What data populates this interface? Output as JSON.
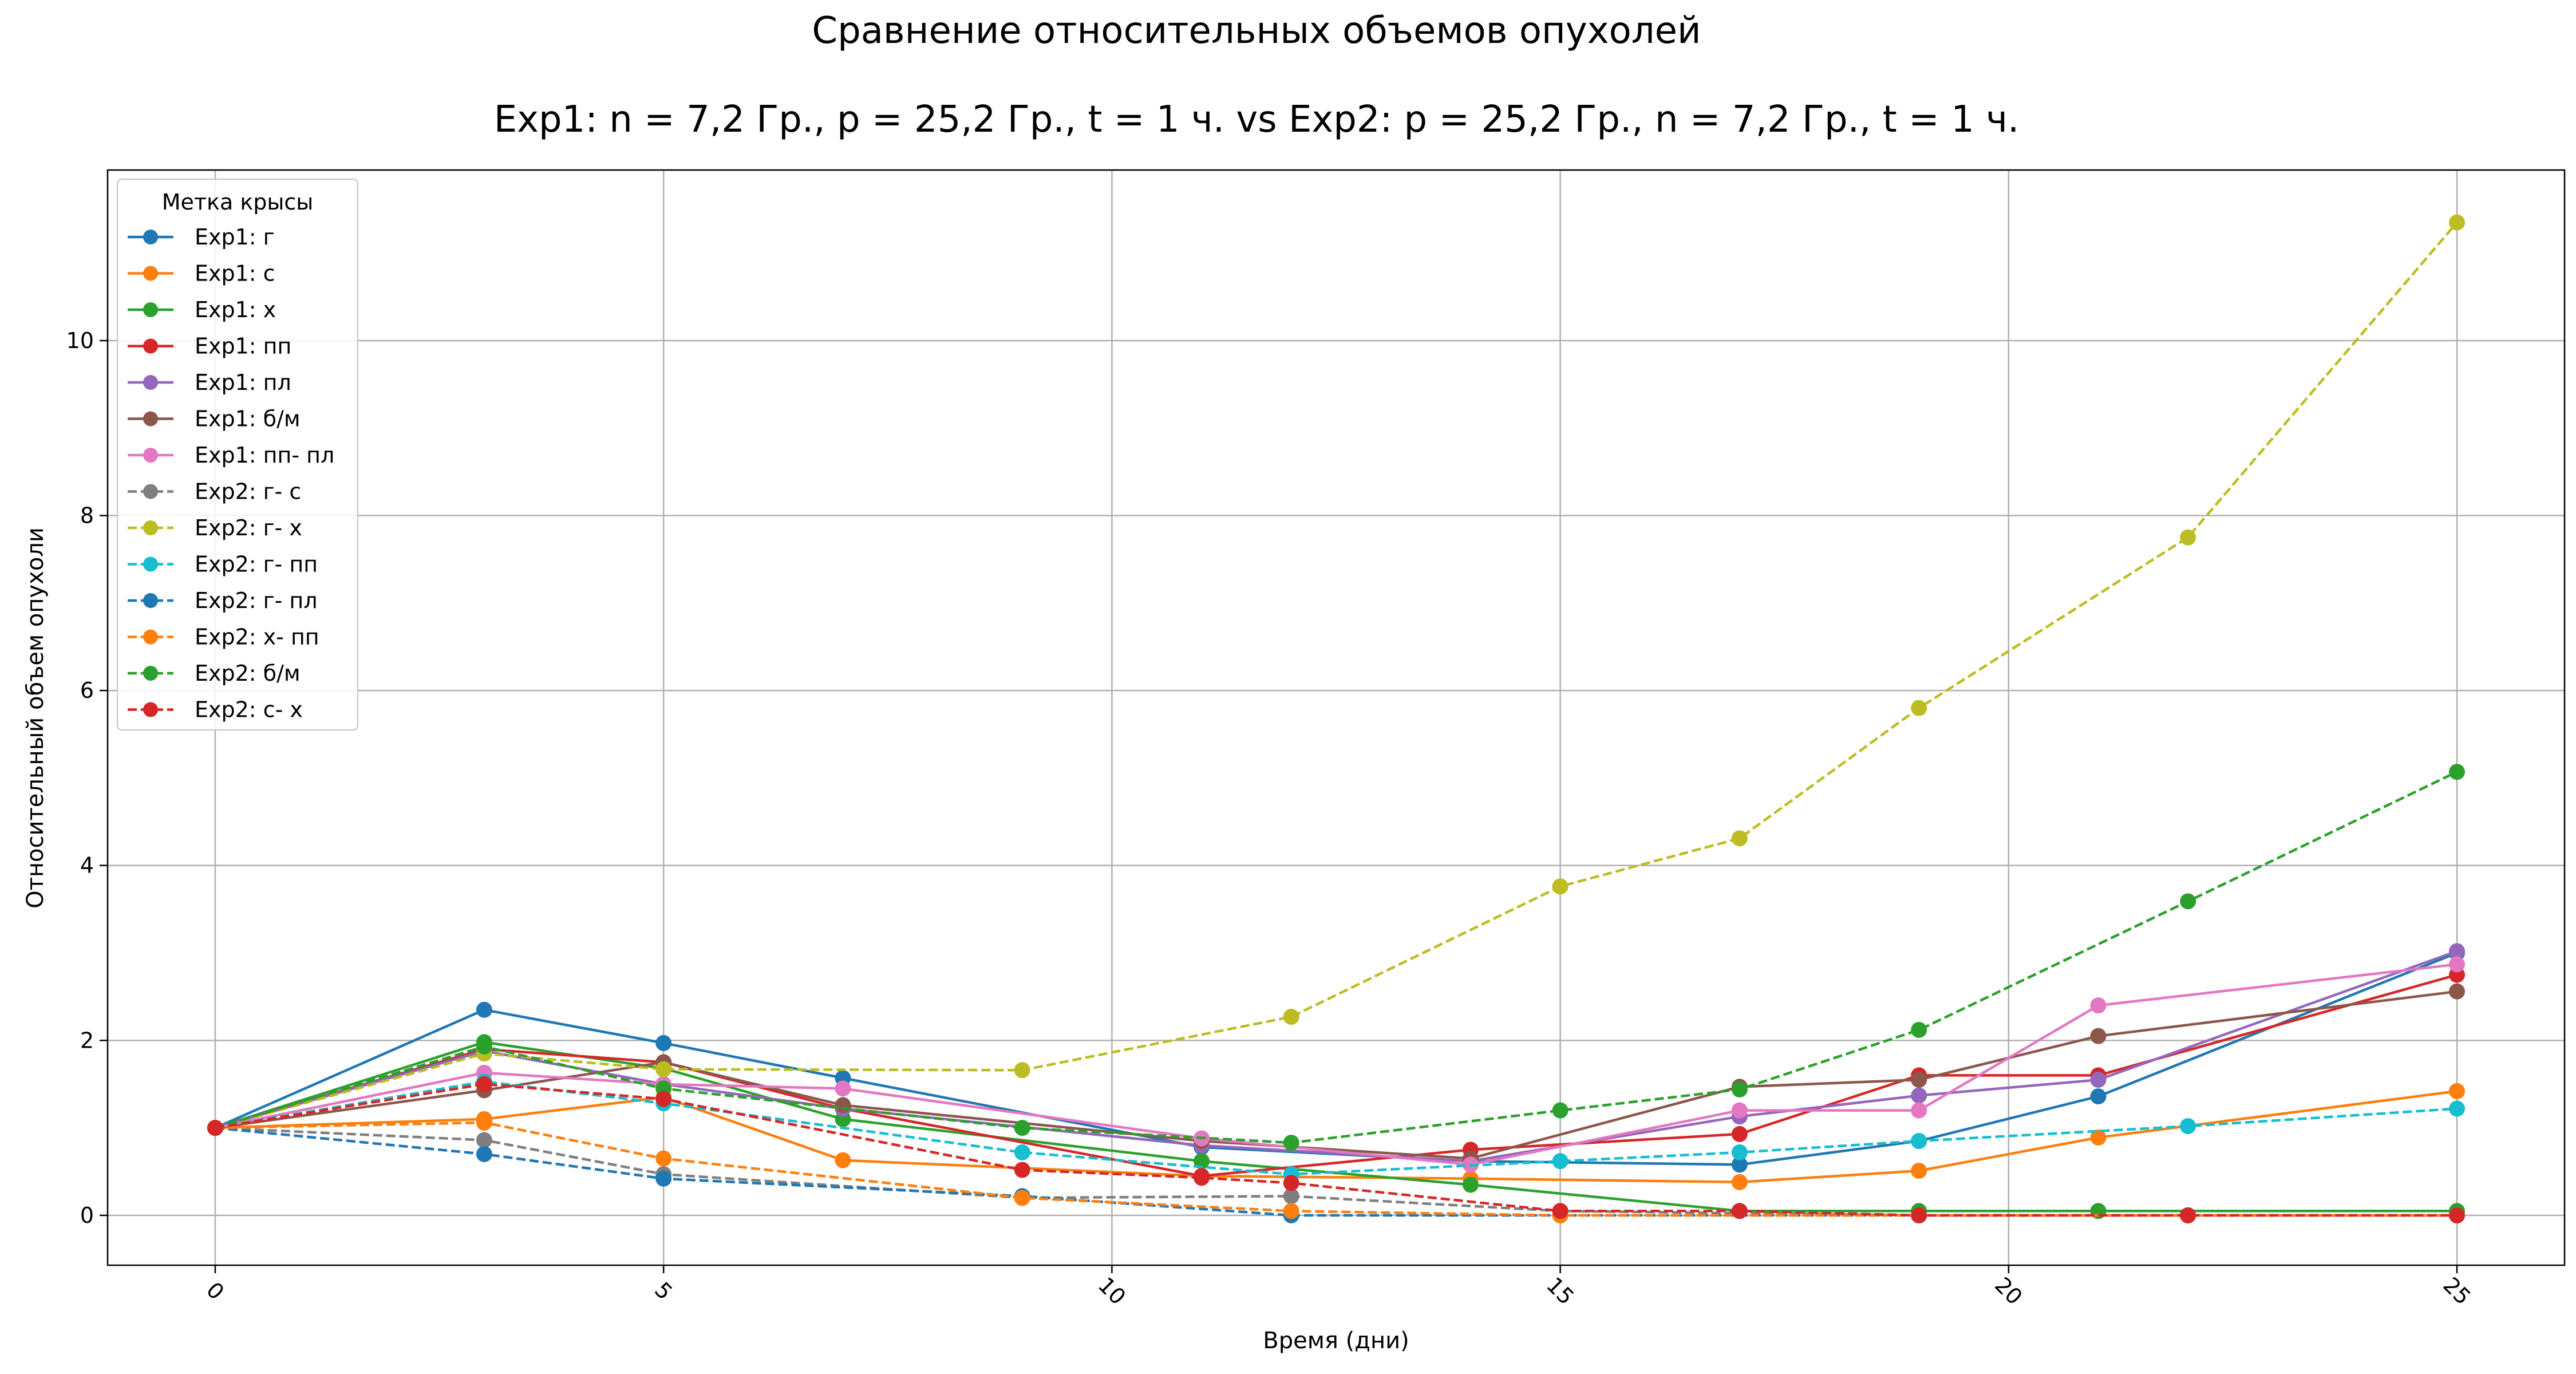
{
  "chart_data": {
    "type": "line",
    "title": "Сравнение относительных объемов опухолей",
    "subtitle": "Exp1: n = 7,2 Гр., p = 25,2 Гр., t = 1 ч. vs Exp2: p = 25,2 Гр., n = 7,2 Гр., t = 1 ч.",
    "xlabel": "Время (дни)",
    "ylabel": "Относительный объем опухоли",
    "xlim": [
      -1.2,
      26.2
    ],
    "ylim": [
      -0.57,
      11.95
    ],
    "xticks": [
      "0",
      "5",
      "10",
      "15",
      "20",
      "25"
    ],
    "yticks": [
      "0",
      "2",
      "4",
      "6",
      "8",
      "10"
    ],
    "grid": true,
    "legend_title": "Метка крысы",
    "legend_position": "top-left",
    "series": [
      {
        "name": "Exp1: г",
        "color": "#1f77b4",
        "style": "solid",
        "x": [
          0,
          3,
          5,
          7,
          11,
          14,
          17,
          19,
          21,
          25
        ],
        "y": [
          1.0,
          2.35,
          1.97,
          1.57,
          0.78,
          0.62,
          0.58,
          0.85,
          1.36,
          3.0
        ]
      },
      {
        "name": "Exp1: с",
        "color": "#ff7f0e",
        "style": "solid",
        "x": [
          0,
          3,
          5,
          7,
          11,
          14,
          17,
          19,
          21,
          25
        ],
        "y": [
          1.0,
          1.1,
          1.35,
          0.63,
          0.45,
          0.42,
          0.38,
          0.51,
          0.89,
          1.42
        ]
      },
      {
        "name": "Exp1: х",
        "color": "#2ca02c",
        "style": "solid",
        "x": [
          0,
          3,
          5,
          7,
          11,
          14,
          17,
          19,
          21,
          25
        ],
        "y": [
          1.0,
          1.98,
          1.68,
          1.1,
          0.62,
          0.35,
          0.05,
          0.05,
          0.05,
          0.05
        ]
      },
      {
        "name": "Exp1: пп",
        "color": "#d62728",
        "style": "solid",
        "x": [
          0,
          3,
          5,
          7,
          11,
          14,
          17,
          19,
          21,
          25
        ],
        "y": [
          1.0,
          1.9,
          1.75,
          1.22,
          0.45,
          0.75,
          0.93,
          1.6,
          1.6,
          2.75
        ]
      },
      {
        "name": "Exp1: пл",
        "color": "#9467bd",
        "style": "solid",
        "x": [
          0,
          3,
          5,
          7,
          11,
          14,
          17,
          19,
          21,
          25
        ],
        "y": [
          1.0,
          1.88,
          1.5,
          1.22,
          0.8,
          0.62,
          1.13,
          1.37,
          1.55,
          3.02
        ]
      },
      {
        "name": "Exp1: б/м",
        "color": "#8c564b",
        "style": "solid",
        "x": [
          0,
          3,
          5,
          7,
          11,
          14,
          17,
          19,
          21,
          25
        ],
        "y": [
          1.0,
          1.43,
          1.75,
          1.26,
          0.85,
          0.65,
          1.47,
          1.55,
          2.05,
          2.56
        ]
      },
      {
        "name": "Exp1: пп- пл",
        "color": "#e377c2",
        "style": "solid",
        "x": [
          0,
          3,
          5,
          7,
          11,
          14,
          17,
          19,
          21,
          25
        ],
        "y": [
          1.0,
          1.63,
          1.5,
          1.45,
          0.88,
          0.58,
          1.2,
          1.2,
          2.4,
          2.87
        ]
      },
      {
        "name": "Exp2: г- с",
        "color": "#7f7f7f",
        "style": "dashed",
        "x": [
          0,
          3,
          5,
          9,
          12,
          15,
          19,
          22,
          25
        ],
        "y": [
          1.0,
          0.86,
          0.47,
          0.2,
          0.22,
          0.05,
          0.0,
          0.0,
          0.0
        ]
      },
      {
        "name": "Exp2: г- х",
        "color": "#bcbd22",
        "style": "dashed",
        "x": [
          0,
          3,
          5,
          9,
          12,
          15,
          17,
          19,
          22,
          25
        ],
        "y": [
          1.0,
          1.85,
          1.67,
          1.66,
          2.27,
          3.76,
          4.31,
          5.8,
          7.75,
          11.35
        ]
      },
      {
        "name": "Exp2: г- пп",
        "color": "#17becf",
        "style": "dashed",
        "x": [
          0,
          3,
          5,
          9,
          12,
          15,
          17,
          19,
          22,
          25
        ],
        "y": [
          1.0,
          1.53,
          1.28,
          0.72,
          0.47,
          0.62,
          0.72,
          0.85,
          1.02,
          1.22
        ]
      },
      {
        "name": "Exp2: г- пл",
        "color": "#1f77b4",
        "style": "dashed",
        "x": [
          0,
          3,
          5,
          9,
          12,
          15,
          19,
          22,
          25
        ],
        "y": [
          1.0,
          0.7,
          0.42,
          0.22,
          0.0,
          0.0,
          0.0,
          0.0,
          0.0
        ]
      },
      {
        "name": "Exp2: х- пп",
        "color": "#ff7f0e",
        "style": "dashed",
        "x": [
          0,
          3,
          5,
          9,
          12,
          15,
          19,
          22,
          25
        ],
        "y": [
          1.0,
          1.06,
          0.65,
          0.2,
          0.05,
          0.0,
          0.0,
          0.0,
          0.0
        ]
      },
      {
        "name": "Exp2: б/м",
        "color": "#2ca02c",
        "style": "dashed",
        "x": [
          0,
          3,
          5,
          9,
          12,
          15,
          17,
          19,
          22,
          25
        ],
        "y": [
          1.0,
          1.93,
          1.45,
          1.0,
          0.83,
          1.2,
          1.44,
          2.12,
          3.59,
          5.07
        ]
      },
      {
        "name": "Exp2: с- х",
        "color": "#d62728",
        "style": "dashed",
        "x": [
          0,
          3,
          5,
          9,
          11,
          12,
          15,
          17,
          19,
          22,
          25
        ],
        "y": [
          1.0,
          1.5,
          1.33,
          0.52,
          0.43,
          0.37,
          0.05,
          0.05,
          0.0,
          0.0,
          0.0
        ]
      }
    ]
  }
}
